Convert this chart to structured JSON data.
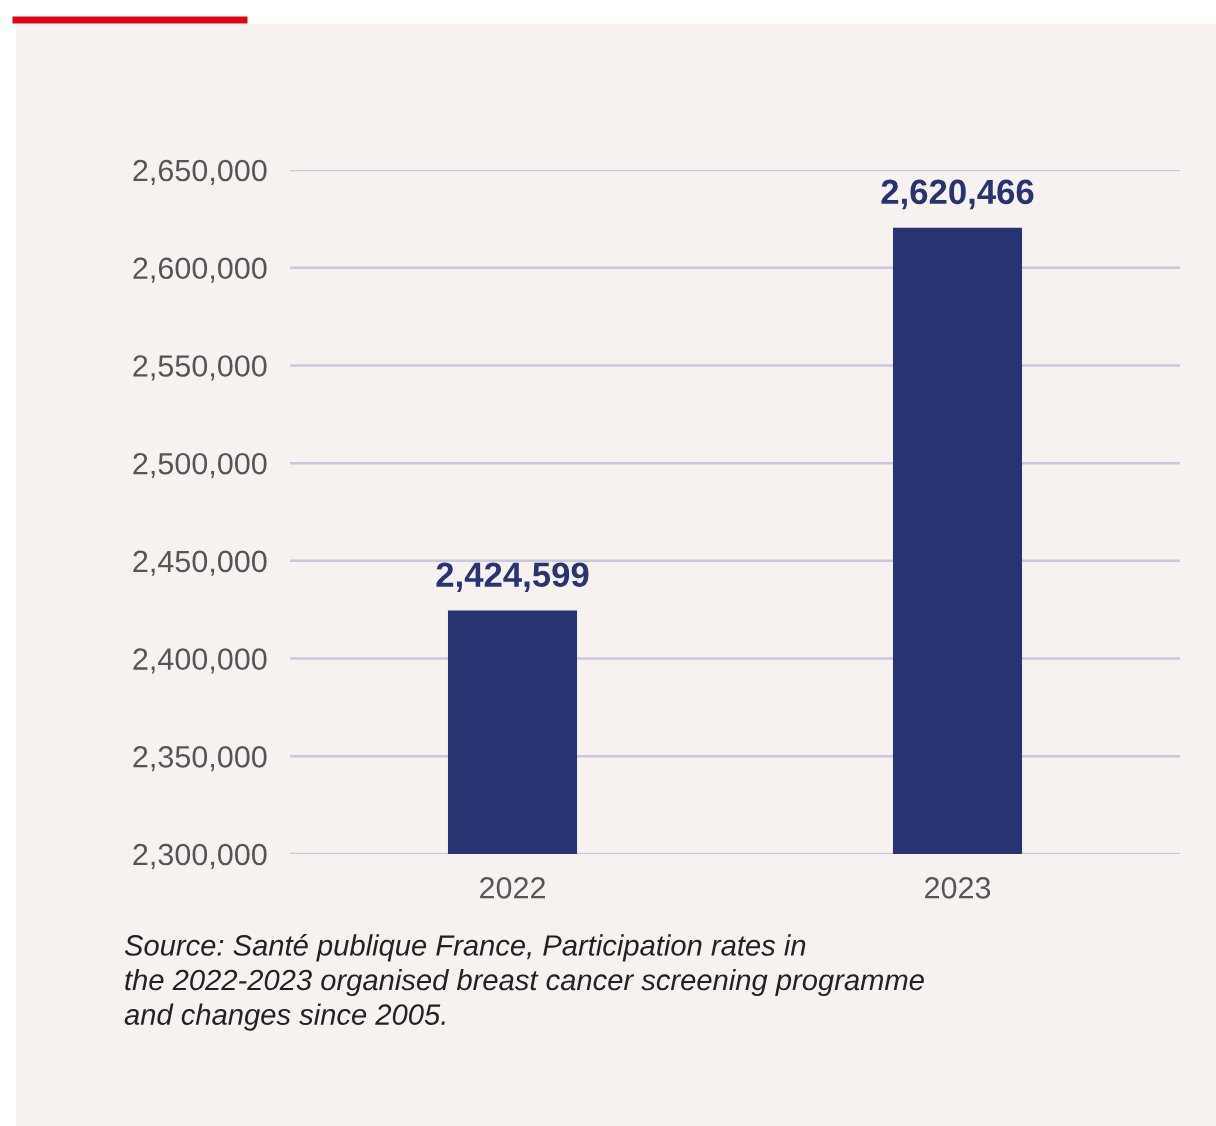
{
  "chart_data": {
    "type": "bar",
    "categories": [
      "2022",
      "2023"
    ],
    "values": [
      2424599,
      2620466
    ],
    "color": "#283371",
    "ylim": [
      2300000,
      2650000
    ],
    "yticks": [
      {
        "value": 2300000,
        "label": "2,300,000"
      },
      {
        "value": 2350000,
        "label": "2,350,000"
      },
      {
        "value": 2400000,
        "label": "2,400,000"
      },
      {
        "value": 2450000,
        "label": "2,450,000"
      },
      {
        "value": 2500000,
        "label": "2,500,000"
      },
      {
        "value": 2550000,
        "label": "2,550,000"
      },
      {
        "value": 2600000,
        "label": "2,600,000"
      },
      {
        "value": 2650000,
        "label": "2,650,000"
      }
    ],
    "value_labels": [
      "2,424,599",
      "2,620,466"
    ],
    "grid": "y",
    "annotations": [
      "Source: Santé publique France, Participation rates in\nthe 2022-2023 organised breast cancer screening programme\nand changes since 2005."
    ]
  }
}
